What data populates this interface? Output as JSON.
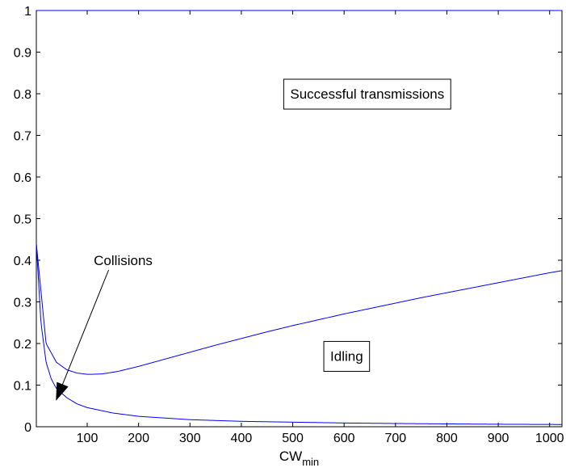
{
  "chart_data": {
    "type": "line",
    "title": "",
    "xlabel": "CW",
    "xlabel_subscript": "min",
    "ylabel": "",
    "xlim": [
      1,
      1024
    ],
    "ylim": [
      0,
      1
    ],
    "xticks": [
      100,
      200,
      300,
      400,
      500,
      600,
      700,
      800,
      900,
      1000
    ],
    "yticks": [
      0,
      0.1,
      0.2,
      0.3,
      0.4,
      0.5,
      0.6,
      0.7,
      0.8,
      0.9,
      1
    ],
    "grid": false,
    "line_color": "#0000ff",
    "series": [
      {
        "key": "upper",
        "x": [
          1,
          20,
          40,
          60,
          80,
          100,
          110,
          130,
          160,
          200,
          250,
          300,
          350,
          400,
          450,
          500,
          550,
          600,
          650,
          700,
          750,
          800,
          850,
          900,
          950,
          1000,
          1024
        ],
        "y": [
          0.44,
          0.2,
          0.155,
          0.137,
          0.129,
          0.126,
          0.126,
          0.127,
          0.133,
          0.145,
          0.162,
          0.179,
          0.196,
          0.212,
          0.228,
          0.243,
          0.257,
          0.271,
          0.284,
          0.297,
          0.31,
          0.322,
          0.334,
          0.346,
          0.358,
          0.37,
          0.375
        ]
      },
      {
        "key": "lower",
        "x": [
          1,
          10,
          20,
          30,
          40,
          60,
          80,
          100,
          150,
          200,
          300,
          400,
          500,
          600,
          700,
          800,
          900,
          1000,
          1024
        ],
        "y": [
          0.44,
          0.25,
          0.155,
          0.115,
          0.092,
          0.07,
          0.055,
          0.046,
          0.033,
          0.025,
          0.017,
          0.013,
          0.011,
          0.009,
          0.0078,
          0.0068,
          0.006,
          0.0055,
          0.0054
        ]
      },
      {
        "key": "top",
        "x": [
          1,
          1024
        ],
        "y": [
          1,
          1
        ]
      }
    ],
    "annotations": [
      {
        "key": "successful",
        "text": "Successful transmissions",
        "x": 645,
        "y": 0.8,
        "boxed": true
      },
      {
        "key": "idling",
        "text": "Idling",
        "x": 605,
        "y": 0.17,
        "boxed": true
      },
      {
        "key": "collisions",
        "text": "Collisions",
        "x": 170,
        "y": 0.4,
        "boxed": false,
        "arrow_to": [
          40,
          0.065
        ]
      }
    ]
  }
}
